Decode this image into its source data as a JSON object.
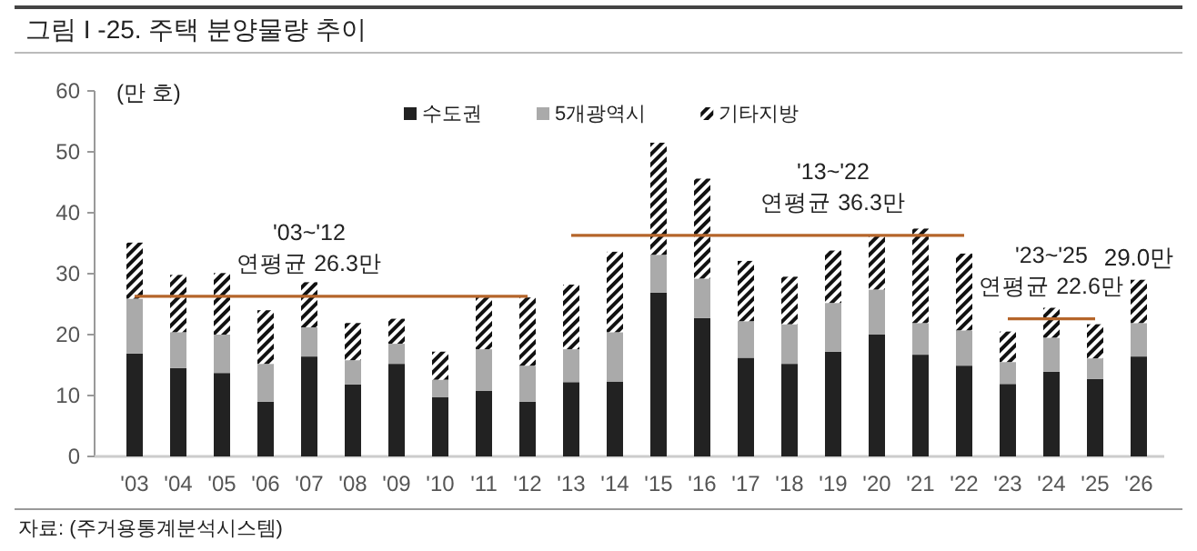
{
  "chart_data": {
    "type": "bar",
    "title": "그림 I -25. 주택 분양물량 추이",
    "ylabel": "(만 호)",
    "categories": [
      "'03",
      "'04",
      "'05",
      "'06",
      "'07",
      "'08",
      "'09",
      "'10",
      "'11",
      "'12",
      "'13",
      "'14",
      "'15",
      "'16",
      "'17",
      "'18",
      "'19",
      "'20",
      "'21",
      "'22",
      "'23",
      "'24",
      "'25",
      "'26"
    ],
    "stacked": true,
    "series": [
      {
        "name": "수도권",
        "color": "#222222",
        "values": [
          16.9,
          14.5,
          13.7,
          9.0,
          16.4,
          11.8,
          15.2,
          9.7,
          10.8,
          9.0,
          12.2,
          12.3,
          26.9,
          22.7,
          16.2,
          15.2,
          17.2,
          20.0,
          16.7,
          14.9,
          11.9,
          13.9,
          12.7,
          16.4
        ]
      },
      {
        "name": "5개광역시",
        "color": "#aaaaaa",
        "values": [
          9.0,
          5.9,
          6.3,
          6.2,
          4.8,
          4.0,
          3.3,
          2.9,
          6.8,
          5.9,
          5.4,
          8.1,
          6.2,
          6.5,
          6.0,
          6.5,
          8.0,
          7.4,
          5.2,
          5.8,
          3.6,
          5.6,
          3.4,
          5.5
        ]
      },
      {
        "name": "기타지방",
        "color": "#111111",
        "values": [
          9.2,
          9.4,
          10.1,
          8.8,
          7.4,
          6.1,
          4.1,
          4.6,
          8.5,
          11.2,
          10.6,
          13.2,
          18.4,
          16.4,
          9.9,
          7.8,
          8.6,
          9.0,
          15.5,
          12.6,
          5.0,
          4.9,
          5.6,
          7.1
        ]
      },
      {
        "type": "line",
        "color": "#b5652a",
        "values": [
          26.3,
          26.3,
          26.3,
          26.3,
          26.3,
          26.3,
          26.3,
          26.3,
          26.3,
          26.3,
          null,
          null,
          null,
          null,
          null,
          null,
          null,
          null,
          null,
          null,
          null,
          null,
          null,
          null
        ]
      },
      {
        "type": "line",
        "color": "#b5652a",
        "values": [
          null,
          null,
          null,
          null,
          null,
          null,
          null,
          null,
          null,
          null,
          36.3,
          36.3,
          36.3,
          36.3,
          36.3,
          36.3,
          36.3,
          36.3,
          36.3,
          36.3,
          null,
          null,
          null,
          null
        ]
      },
      {
        "type": "line",
        "color": "#b5652a",
        "values": [
          null,
          null,
          null,
          null,
          null,
          null,
          null,
          null,
          null,
          null,
          null,
          null,
          null,
          null,
          null,
          null,
          null,
          null,
          null,
          null,
          22.6,
          22.6,
          22.6,
          null
        ]
      }
    ],
    "totals": [
      null,
      null,
      null,
      null,
      null,
      null,
      null,
      null,
      null,
      null,
      null,
      null,
      null,
      null,
      null,
      null,
      null,
      null,
      null,
      null,
      null,
      null,
      null,
      "29.0만"
    ],
    "ylim": [
      0,
      60
    ],
    "yticks": [
      0,
      10,
      20,
      30,
      40,
      50,
      60
    ],
    "grid": false,
    "legend": "top",
    "annotations": [
      {
        "text": "'03~'12\n연평균 26.3만",
        "x": "'07",
        "y": 26.3
      },
      {
        "text": "'13~'22\n연평균 36.3만",
        "x": "'19",
        "y": 36.3
      },
      {
        "text": "'23~'25\n연평균 22.6만",
        "x": "'24",
        "y": 22.6
      },
      "자료: (주거용통계분석시스템)"
    ]
  }
}
